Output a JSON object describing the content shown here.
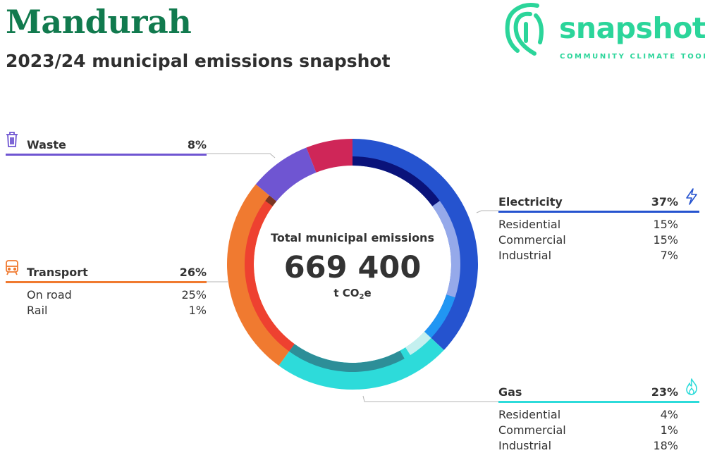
{
  "header": {
    "title": "Mandurah",
    "subtitle": "2023/24 municipal emissions snapshot"
  },
  "logo": {
    "wordmark": "snapshot",
    "tagline": "COMMUNITY CLIMATE TOOL",
    "color": "#2bd59a"
  },
  "center": {
    "label": "Total municipal emissions",
    "value": "669 400",
    "unit": "t CO",
    "unit_sub": "2",
    "unit_tail": "e"
  },
  "chart_data": {
    "type": "pie",
    "variant": "donut",
    "total": 669400,
    "categories": [
      {
        "name": "Electricity",
        "percent": "37%",
        "value": 37,
        "color": "#2553cf",
        "icon": "lightning-icon",
        "subs": [
          {
            "name": "Residential",
            "percent": "15%",
            "value": 15,
            "color": "#0a137a"
          },
          {
            "name": "Commercial",
            "percent": "15%",
            "value": 15,
            "color": "#95a9ea"
          },
          {
            "name": "Industrial",
            "percent": "7%",
            "value": 7,
            "color": "#2196f3"
          }
        ]
      },
      {
        "name": "Gas",
        "percent": "23%",
        "value": 23,
        "color": "#2ddbda",
        "icon": "flame-icon",
        "subs": [
          {
            "name": "Residential",
            "percent": "4%",
            "value": 4,
            "color": "#c4f0ef"
          },
          {
            "name": "Commercial",
            "percent": "1%",
            "value": 1,
            "color": "#2ddbda"
          },
          {
            "name": "Industrial",
            "percent": "18%",
            "value": 18,
            "color": "#2d8e98"
          }
        ]
      },
      {
        "name": "Transport",
        "percent": "26%",
        "value": 26,
        "color": "#f07a30",
        "icon": "train-icon",
        "subs": [
          {
            "name": "On road",
            "percent": "25%",
            "value": 25,
            "color": "#ee4130"
          },
          {
            "name": "Rail",
            "percent": "1%",
            "value": 1,
            "color": "#7a3522"
          }
        ]
      },
      {
        "name": "Waste",
        "percent": "8%",
        "value": 8,
        "color": "#6f55d2",
        "icon": "trash-icon",
        "subs": []
      },
      {
        "name": "",
        "percent": "",
        "value": 6,
        "color": "#cf2658",
        "icon": "",
        "subs": []
      }
    ]
  }
}
